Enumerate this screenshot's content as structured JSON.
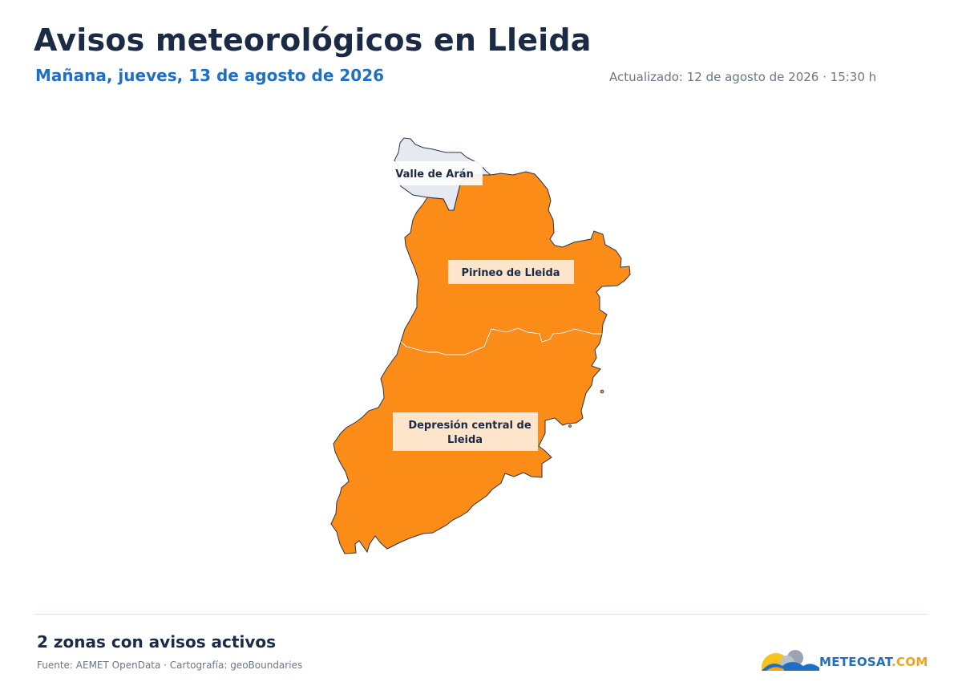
{
  "header": {
    "title": "Avisos meteorológicos en Lleida",
    "subtitle": "Mañana, jueves, 13 de agosto de 2026",
    "updated": "Actualizado: 12 de agosto de 2026 · 15:30 h"
  },
  "map": {
    "zones": [
      {
        "id": "valle-aran",
        "label_lines": [
          "Valle de Arán"
        ],
        "warning": "none",
        "color": "#e6e9ef"
      },
      {
        "id": "pirineo",
        "label_lines": [
          "Pirineo de Lleida"
        ],
        "warning": "orange",
        "color": "#fb8c17"
      },
      {
        "id": "depresion",
        "label_lines": [
          "Depresión central de",
          "Lleida"
        ],
        "warning": "orange",
        "color": "#fb8c17"
      }
    ],
    "label_bg": "#fde5cc",
    "border_color": "#2b3545"
  },
  "footer": {
    "summary": "2 zonas con avisos activos",
    "source": "Fuente: AEMET OpenData · Cartografía: geoBoundaries",
    "logo_part1": "METEOSAT",
    "logo_part2": ".COM"
  }
}
